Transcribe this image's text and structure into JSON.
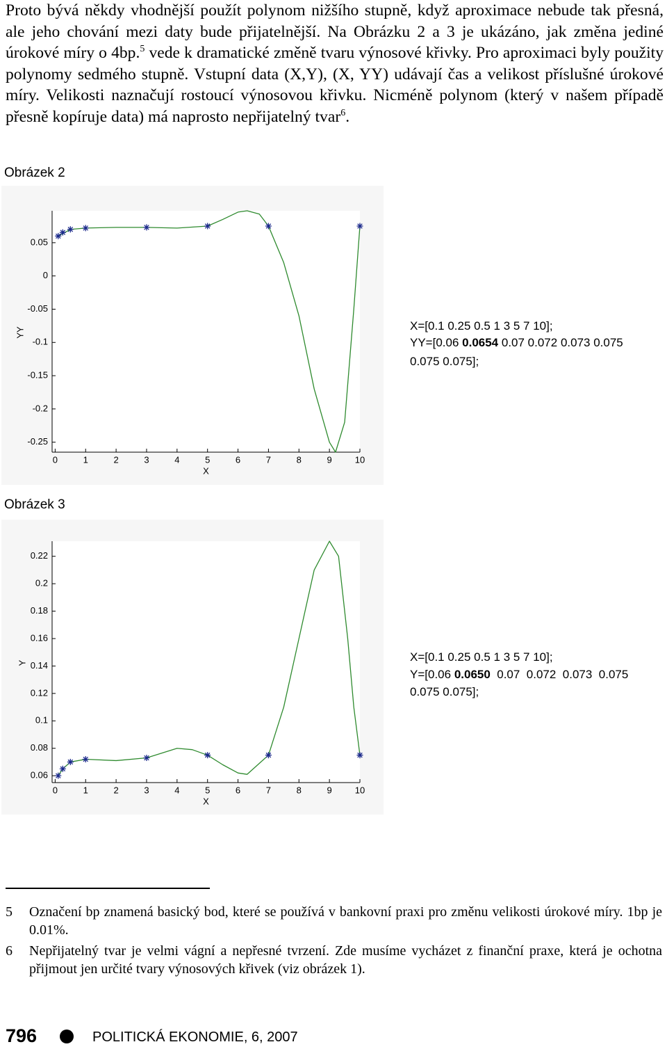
{
  "paragraph": {
    "text_1": "Proto bývá někdy vhodnější použít polynom nižšího stupně, když aproximace nebude tak přesná, ale jeho chování mezi daty bude přijatelnější. Na Obrázku 2 a 3 je ukázáno, jak změna jediné úrokové míry o 4bp.",
    "footnote_ref_1": "5",
    "text_2": " vede k dramatické změně tvaru výnosové křivky. Pro aproximaci byly použity polynomy sedmého stupně. Vstupní data (X,Y), (X, YY) udávají čas a velikost příslušné úrokové míry. Velikosti naznačují rostoucí výnosovou křivku. Nicméně polynom (který v našem případě přesně kopíruje data) má naprosto nepřijatelný tvar",
    "footnote_ref_2": "6",
    "text_3": "."
  },
  "chart_data": [
    {
      "type": "line",
      "title": "Obrázek 2",
      "x_label": "X",
      "y_label": "YY",
      "xlim": [
        -0.1,
        10
      ],
      "ylim": [
        -0.265,
        0.098
      ],
      "xticks": [
        0,
        1,
        2,
        3,
        4,
        5,
        6,
        7,
        8,
        9,
        10
      ],
      "yticks": [
        0.05,
        0,
        -0.05,
        -0.1,
        -0.15,
        -0.2,
        -0.25
      ],
      "grid": false,
      "series": [
        {
          "color": "#2e8a2e",
          "x": [
            0.1,
            0.5,
            1,
            2,
            3,
            4,
            5,
            5.5,
            6,
            6.3,
            6.7,
            7,
            7.5,
            8,
            8.5,
            9,
            9.2,
            9.5,
            9.8,
            10
          ],
          "values": [
            0.06,
            0.07,
            0.072,
            0.073,
            0.073,
            0.072,
            0.075,
            0.085,
            0.096,
            0.098,
            0.093,
            0.075,
            0.02,
            -0.06,
            -0.17,
            -0.25,
            -0.265,
            -0.22,
            -0.05,
            0.075
          ]
        },
        {
          "color": "#1c2a8c",
          "marker": "*",
          "x": [
            0.1,
            0.25,
            0.5,
            1,
            3,
            5,
            7,
            10
          ],
          "values": [
            0.06,
            0.0654,
            0.07,
            0.072,
            0.073,
            0.075,
            0.075,
            0.075
          ]
        }
      ],
      "annotation": [
        [
          "X=[0.1 0.25 0.5 1 3 5 7 10];"
        ],
        [
          "YY=[0.06 ",
          "0.0654",
          " 0.07 0.072 0.073 0.075"
        ],
        [
          "0.075 0.075];"
        ]
      ]
    },
    {
      "type": "line",
      "title": "Obrázek 3",
      "x_label": "X",
      "y_label": "Y",
      "xlim": [
        -0.1,
        10
      ],
      "ylim": [
        0.055,
        0.231
      ],
      "xticks": [
        0,
        1,
        2,
        3,
        4,
        5,
        6,
        7,
        8,
        9,
        10
      ],
      "yticks": [
        0.22,
        0.2,
        0.18,
        0.16,
        0.14,
        0.12,
        0.1,
        0.08,
        0.06
      ],
      "grid": false,
      "series": [
        {
          "color": "#2e8a2e",
          "x": [
            0.1,
            0.25,
            0.5,
            1,
            2,
            3,
            4,
            4.5,
            5,
            5.5,
            6,
            6.3,
            7,
            7.5,
            8,
            8.5,
            9,
            9.3,
            9.6,
            9.8,
            10
          ],
          "values": [
            0.06,
            0.065,
            0.07,
            0.072,
            0.071,
            0.073,
            0.08,
            0.079,
            0.075,
            0.068,
            0.062,
            0.061,
            0.075,
            0.11,
            0.16,
            0.21,
            0.231,
            0.22,
            0.16,
            0.11,
            0.075
          ]
        },
        {
          "color": "#1c2a8c",
          "marker": "*",
          "x": [
            0.1,
            0.25,
            0.5,
            1,
            3,
            5,
            7,
            10
          ],
          "values": [
            0.06,
            0.065,
            0.07,
            0.072,
            0.073,
            0.075,
            0.075,
            0.075
          ]
        }
      ],
      "annotation": [
        [
          "X=[0.1 0.25 0.5 1 3 5 7 10];"
        ],
        [
          "Y=[0.06 ",
          "0.0650",
          "  0.07  0.072  0.073  0.075"
        ],
        [
          "0.075 0.075];"
        ]
      ]
    }
  ],
  "footnotes": [
    {
      "number": "5",
      "text": "Označení bp znamená basický bod, které se používá v bankovní praxi pro změnu velikosti úrokové míry. 1bp je 0.01%."
    },
    {
      "number": "6",
      "text": "Nepřijatelný tvar je velmi vágní a nepřesné tvrzení. Zde musíme vycházet z finanční praxe, která je ochotna přijmout jen určité tvary výnosových křivek (viz obrázek 1)."
    }
  ],
  "footer": {
    "page_number": "796",
    "journal": "POLITICKÁ EKONOMIE, 6, 2007"
  }
}
